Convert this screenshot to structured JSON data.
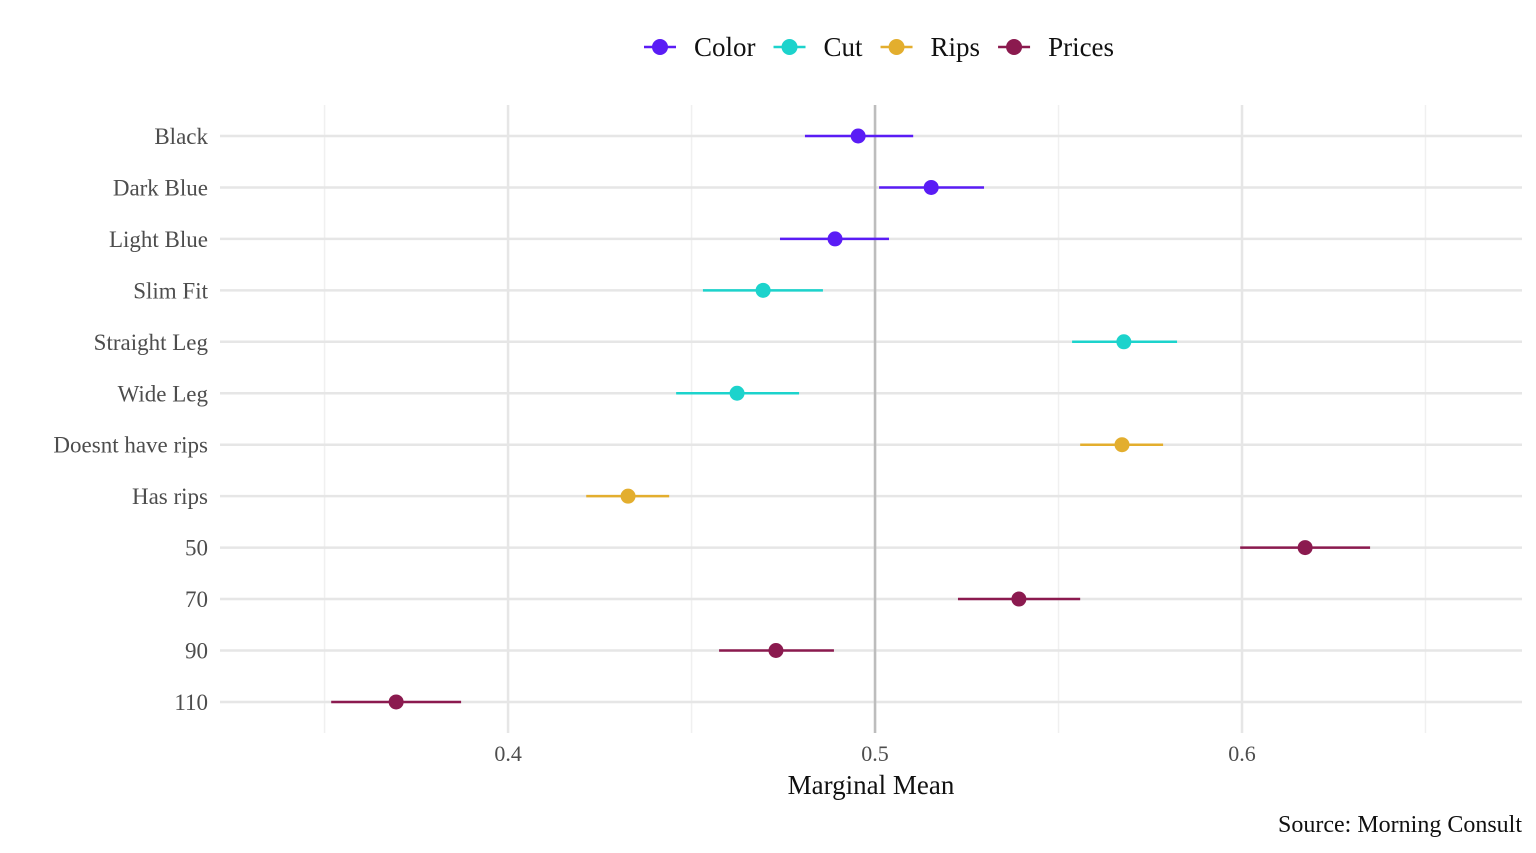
{
  "chart_data": {
    "type": "scatter",
    "subtype": "dot-and-whisker",
    "title": "",
    "xlabel": "Marginal Mean",
    "ylabel": "",
    "caption": "Source: Morning Consult",
    "xlim": [
      0.3215,
      0.6763
    ],
    "x_ticks": [
      0.4,
      0.5,
      0.6
    ],
    "x_tick_labels": [
      "0.4",
      "0.5",
      "0.6"
    ],
    "reference_line": 0.5,
    "grid": true,
    "legend_position": "top",
    "legend": [
      {
        "name": "Color",
        "color": "#5a1cf5"
      },
      {
        "name": "Cut",
        "color": "#1cd3cc"
      },
      {
        "name": "Rips",
        "color": "#e3ae2e"
      },
      {
        "name": "Prices",
        "color": "#8b1a4f"
      }
    ],
    "points": [
      {
        "label": "Black",
        "group": "Color",
        "estimate": 0.4954,
        "lower": 0.4809,
        "upper": 0.5104
      },
      {
        "label": "Dark Blue",
        "group": "Color",
        "estimate": 0.5153,
        "lower": 0.5011,
        "upper": 0.5297
      },
      {
        "label": "Light Blue",
        "group": "Color",
        "estimate": 0.4891,
        "lower": 0.4741,
        "upper": 0.5038
      },
      {
        "label": "Slim Fit",
        "group": "Cut",
        "estimate": 0.4695,
        "lower": 0.4531,
        "upper": 0.4858
      },
      {
        "label": "Straight Leg",
        "group": "Cut",
        "estimate": 0.5678,
        "lower": 0.5537,
        "upper": 0.5823
      },
      {
        "label": "Wide Leg",
        "group": "Cut",
        "estimate": 0.4624,
        "lower": 0.4458,
        "upper": 0.4793
      },
      {
        "label": "Doesnt have rips",
        "group": "Rips",
        "estimate": 0.5673,
        "lower": 0.5559,
        "upper": 0.5785
      },
      {
        "label": "Has rips",
        "group": "Rips",
        "estimate": 0.4327,
        "lower": 0.4213,
        "upper": 0.4439
      },
      {
        "label": "50",
        "group": "Prices",
        "estimate": 0.6172,
        "lower": 0.5995,
        "upper": 0.6349
      },
      {
        "label": "70",
        "group": "Prices",
        "estimate": 0.5392,
        "lower": 0.5226,
        "upper": 0.5559
      },
      {
        "label": "90",
        "group": "Prices",
        "estimate": 0.473,
        "lower": 0.4575,
        "upper": 0.4888
      },
      {
        "label": "110",
        "group": "Prices",
        "estimate": 0.3695,
        "lower": 0.3518,
        "upper": 0.3872
      }
    ]
  }
}
